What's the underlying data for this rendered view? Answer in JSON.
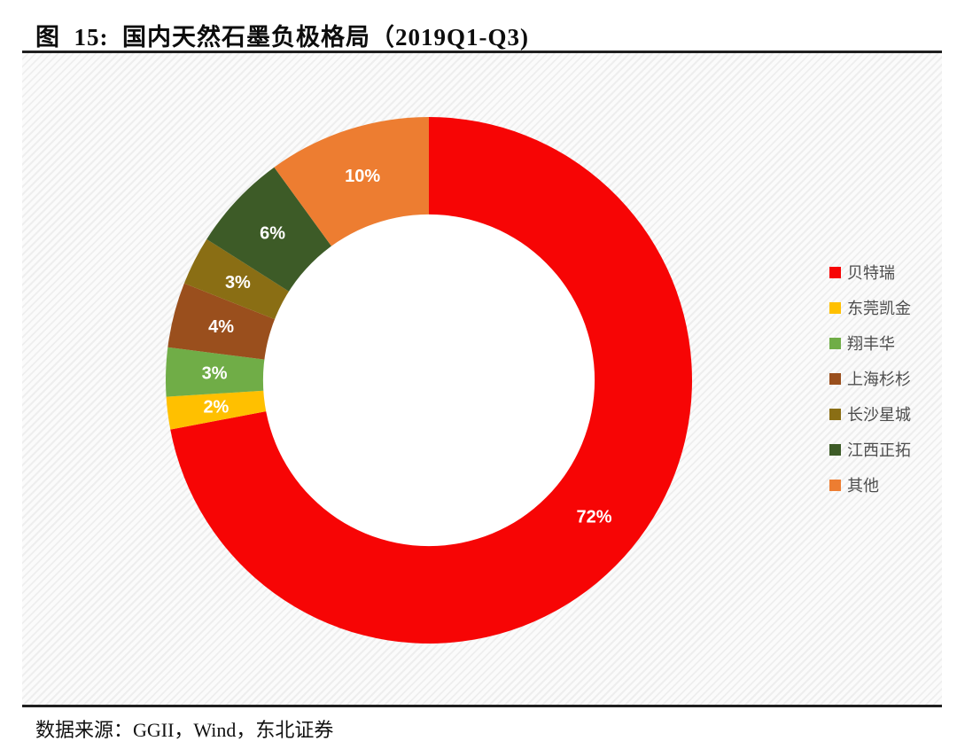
{
  "page": {
    "title": "图  15:  国内天然石墨负极格局（2019Q1-Q3)",
    "source_note": "数据来源：GGII，Wind，东北证券",
    "rule_color": "#1f1f1f",
    "background": "#ffffff"
  },
  "chart_data": {
    "type": "pie",
    "subtype": "donut",
    "title": "国内天然石墨负极格局（2019Q1-Q3)",
    "unit": "%",
    "categories": [
      "贝特瑞",
      "东莞凯金",
      "翔丰华",
      "上海杉杉",
      "长沙星城",
      "江西正拓",
      "其他"
    ],
    "values": [
      72,
      2,
      3,
      4,
      3,
      6,
      10
    ],
    "labels": [
      "72%",
      "2%",
      "3%",
      "4%",
      "3%",
      "6%",
      "10%"
    ],
    "colors": [
      "#F70505",
      "#FFC000",
      "#70AD47",
      "#9A4F1D",
      "#8A6E14",
      "#3D5B27",
      "#ED7D31"
    ],
    "label_color": "#FFFFFF",
    "start_angle_deg": 0,
    "direction": "clockwise",
    "donut_hole_ratio": 0.63,
    "hole_fill": "#FFFFFF",
    "legend_position": "right",
    "legend_text_color": "#4d4d4d"
  }
}
